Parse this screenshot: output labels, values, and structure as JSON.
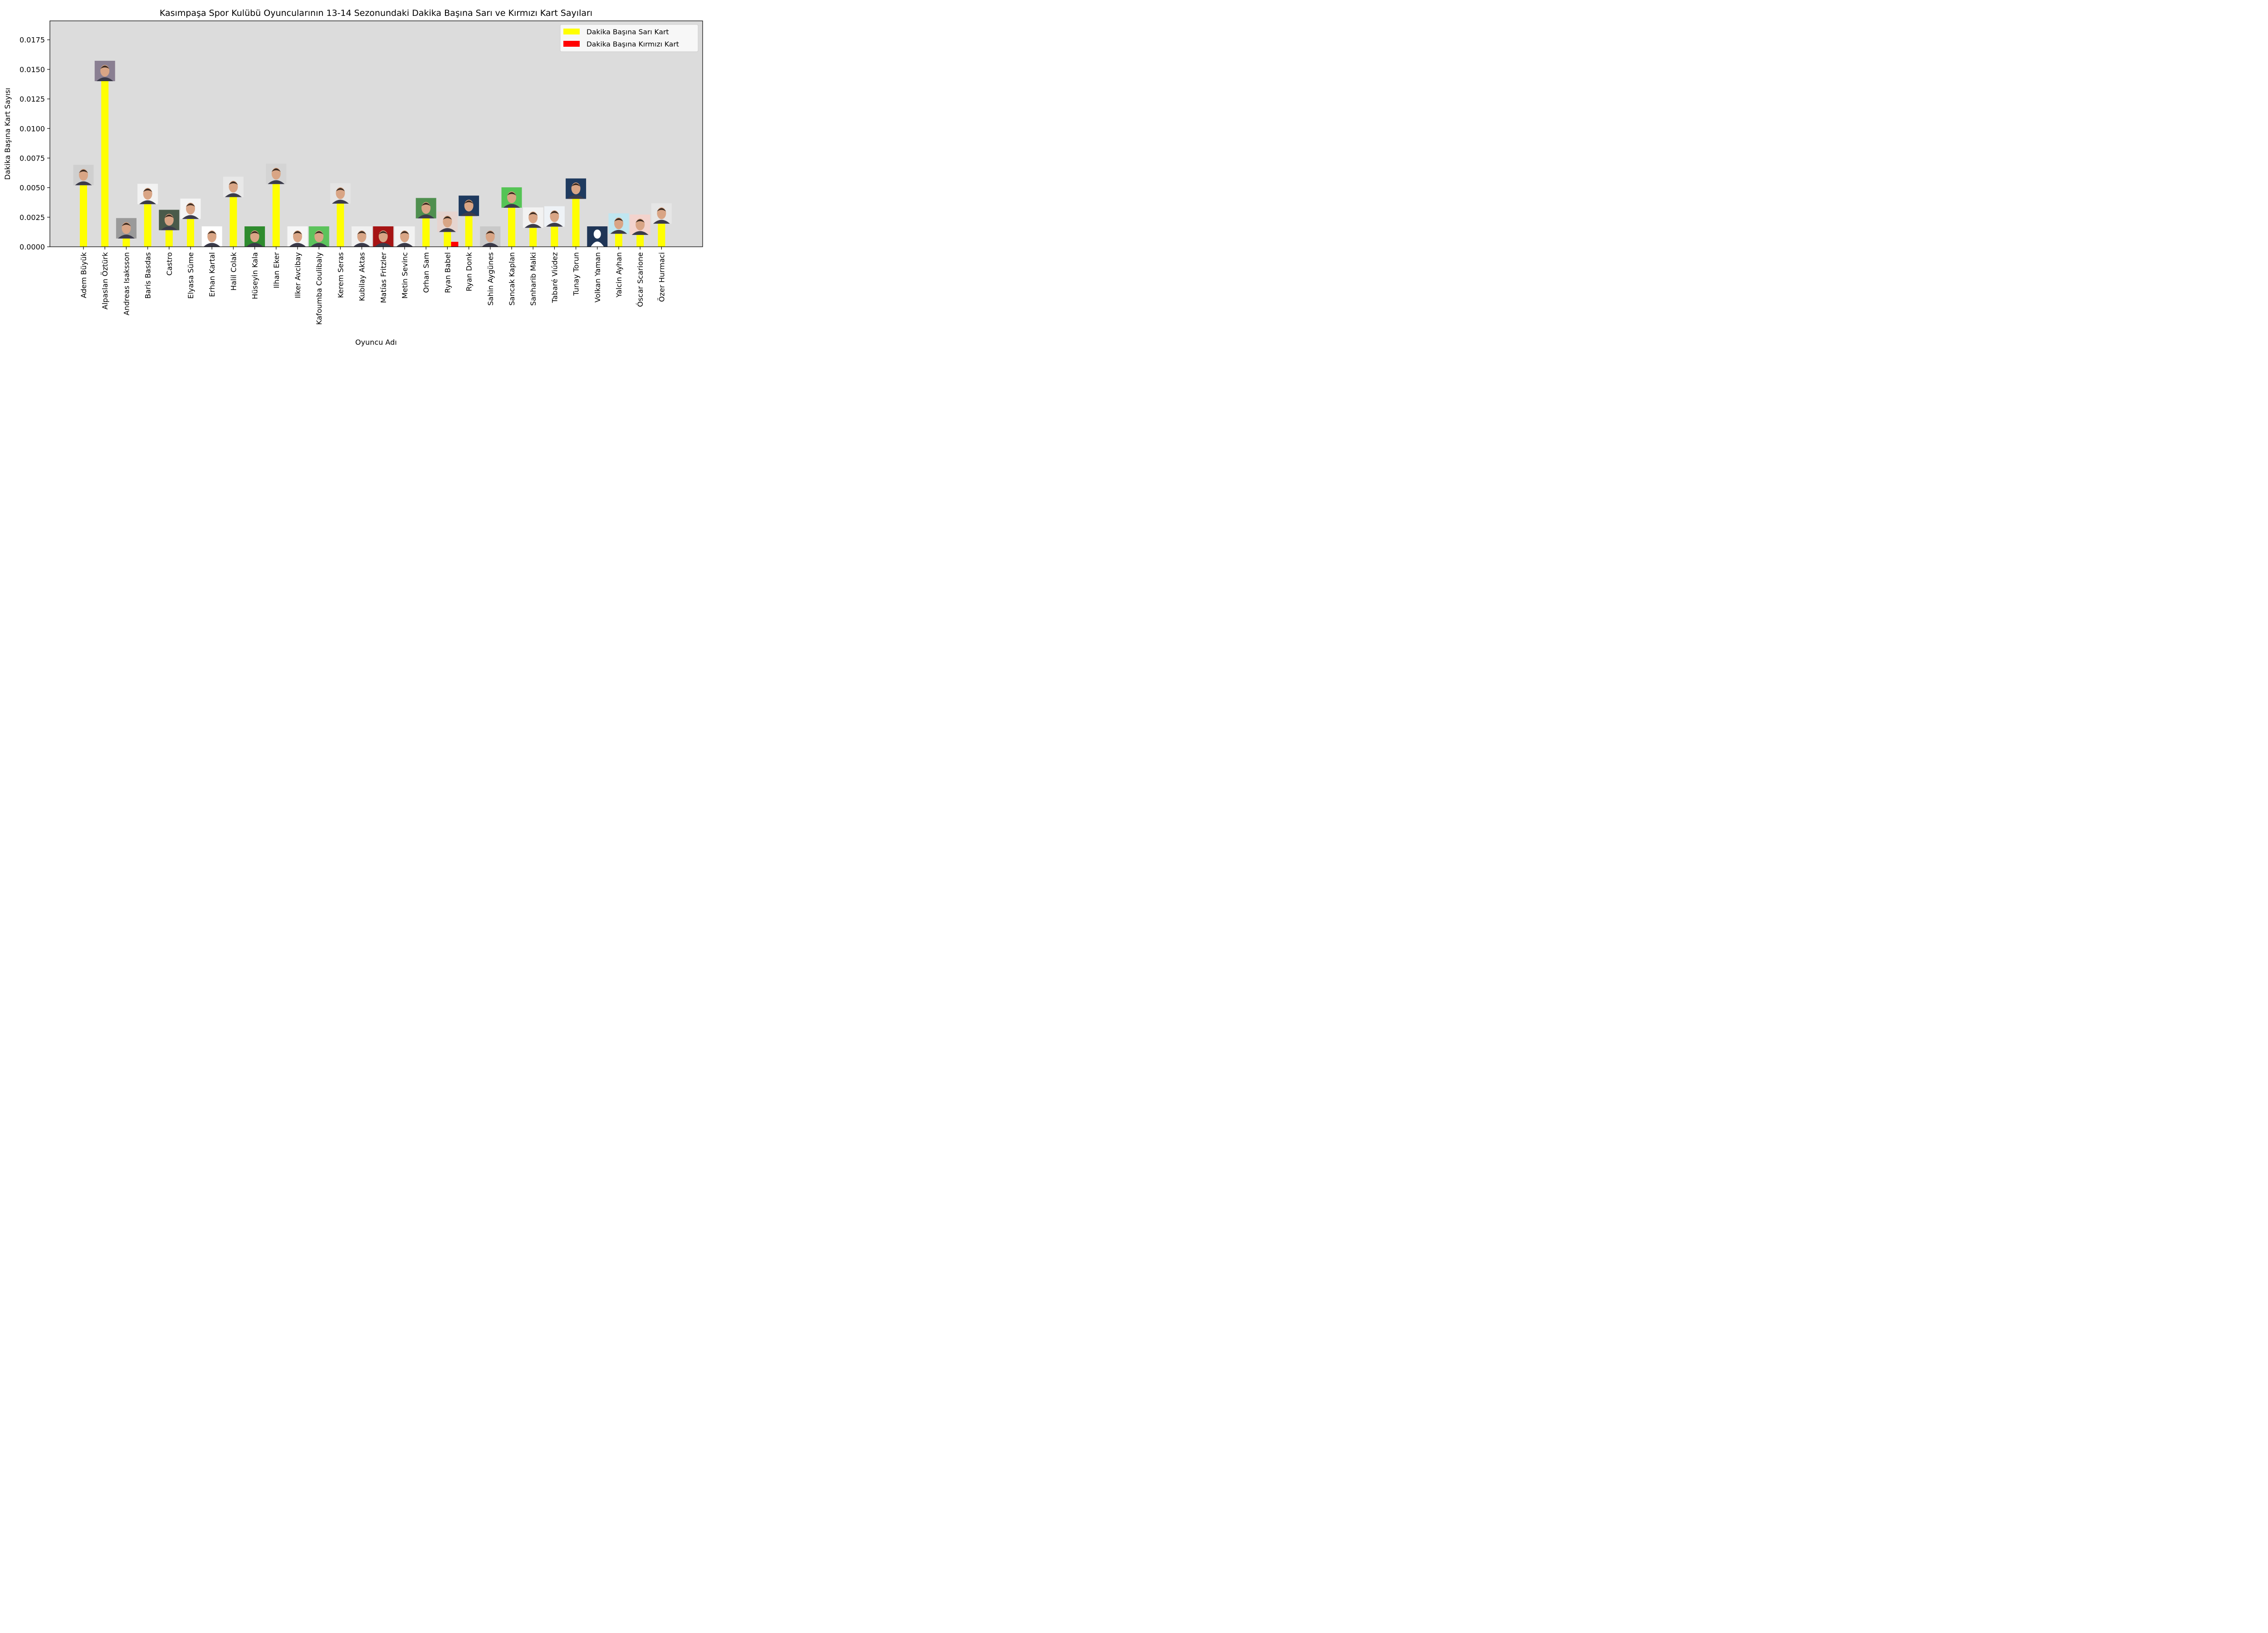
{
  "chart_data": {
    "type": "bar",
    "title": "Kasımpaşa Spor Kulübü Oyuncularının 13-14 Sezonundaki Dakika Başına Sarı ve Kırmızı Kart Sayıları",
    "xlabel": "Oyuncu Adı",
    "ylabel": "Dakika Başına Kart Sayısı",
    "ylim": [
      0,
      0.0191
    ],
    "yticks": [
      "0.0000",
      "0.0025",
      "0.0050",
      "0.0075",
      "0.0100",
      "0.0125",
      "0.0150",
      "0.0175"
    ],
    "ytick_values": [
      0,
      0.0025,
      0.005,
      0.0075,
      0.01,
      0.0125,
      0.015,
      0.0175
    ],
    "grid": false,
    "legend_position": "top-right",
    "background_color": "#dcdcdc",
    "categories": [
      "Adem Büyük",
      "Alpaslan Öztürk",
      "Andreas Isaksson",
      "Baris Basdas",
      "Castro",
      "Elyasa Süme",
      "Erhan Kartal",
      "Halil Colak",
      "Hüseyin Kala",
      "Ilhan Eker",
      "Ilker Avcibay",
      "Kafoumba Coulibaly",
      "Kerem Seras",
      "Kubilay Aktas",
      "Matías Fritzler",
      "Metin Sevinc",
      "Orhan Sam",
      "Ryan Babel",
      "Ryan Donk",
      "Sahin Aygünes",
      "Sancak Kaplan",
      "Sanharib Malki",
      "Tabaré Viúdez",
      "Tunay Torun",
      "Volkan Yaman",
      "Yalcin Ayhan",
      "Óscar Scarione",
      "Özer Hurmaci"
    ],
    "series": [
      {
        "name": "Dakika Başına Sarı Kart",
        "color": "#ffff00",
        "values": [
          0.0052,
          0.014,
          0.0007,
          0.0036,
          0.0014,
          0.00235,
          0.0,
          0.0042,
          0.0,
          0.0053,
          0.0,
          0.0,
          0.00365,
          0.0,
          0.0,
          0.0,
          0.0024,
          0.00125,
          0.0026,
          0.0,
          0.0033,
          0.0016,
          0.0017,
          0.00405,
          0.0,
          0.0011,
          0.001,
          0.00195
        ]
      },
      {
        "name": "Dakika Başına Kırmızı Kart",
        "color": "#ff0000",
        "values": [
          0,
          0,
          0,
          0,
          0,
          0,
          0,
          0,
          0,
          0,
          0,
          0,
          0,
          0,
          0,
          0,
          0,
          0.00042,
          0,
          0,
          0,
          0,
          0,
          0,
          0,
          0,
          0,
          0
        ]
      }
    ],
    "player_photos": [
      {
        "icon": "player-photo-icon",
        "bg": "#cfcfcf"
      },
      {
        "icon": "player-photo-icon",
        "bg": "#8a7f92"
      },
      {
        "icon": "player-photo-icon",
        "bg": "#9a9a9a"
      },
      {
        "icon": "player-photo-icon",
        "bg": "#f2f2f2"
      },
      {
        "icon": "player-photo-icon",
        "bg": "#4a5a4a"
      },
      {
        "icon": "player-photo-icon",
        "bg": "#f4f4f4"
      },
      {
        "icon": "player-photo-icon",
        "bg": "#ffffff"
      },
      {
        "icon": "player-photo-icon",
        "bg": "#e8e8e8"
      },
      {
        "icon": "player-photo-icon",
        "bg": "#2e8b2e"
      },
      {
        "icon": "player-photo-icon",
        "bg": "#d4d4d4"
      },
      {
        "icon": "player-photo-icon",
        "bg": "#f6f6f6"
      },
      {
        "icon": "player-photo-icon",
        "bg": "#5cc35c"
      },
      {
        "icon": "player-photo-icon",
        "bg": "#e4e4e4"
      },
      {
        "icon": "player-photo-icon",
        "bg": "#f0f0f0"
      },
      {
        "icon": "player-photo-icon",
        "bg": "#a61414"
      },
      {
        "icon": "player-photo-icon",
        "bg": "#f2f2f2"
      },
      {
        "icon": "player-photo-icon",
        "bg": "#4f8f4f"
      },
      {
        "icon": "player-photo-icon",
        "bg": "#e6d4cf"
      },
      {
        "icon": "player-photo-icon",
        "bg": "#1e3a5f"
      },
      {
        "icon": "player-photo-icon",
        "bg": "#c9c9c9"
      },
      {
        "icon": "player-photo-icon",
        "bg": "#55c455"
      },
      {
        "icon": "player-photo-icon",
        "bg": "#f2f2f2"
      },
      {
        "icon": "player-photo-icon",
        "bg": "#eef2f6"
      },
      {
        "icon": "player-photo-icon",
        "bg": "#1e3a5f"
      },
      {
        "icon": "player-silhouette-icon",
        "bg": "#1f3556"
      },
      {
        "icon": "player-photo-icon",
        "bg": "#bfe6f0"
      },
      {
        "icon": "player-photo-icon",
        "bg": "#f3d3cd"
      },
      {
        "icon": "player-photo-icon",
        "bg": "#e6e6e6"
      }
    ]
  }
}
